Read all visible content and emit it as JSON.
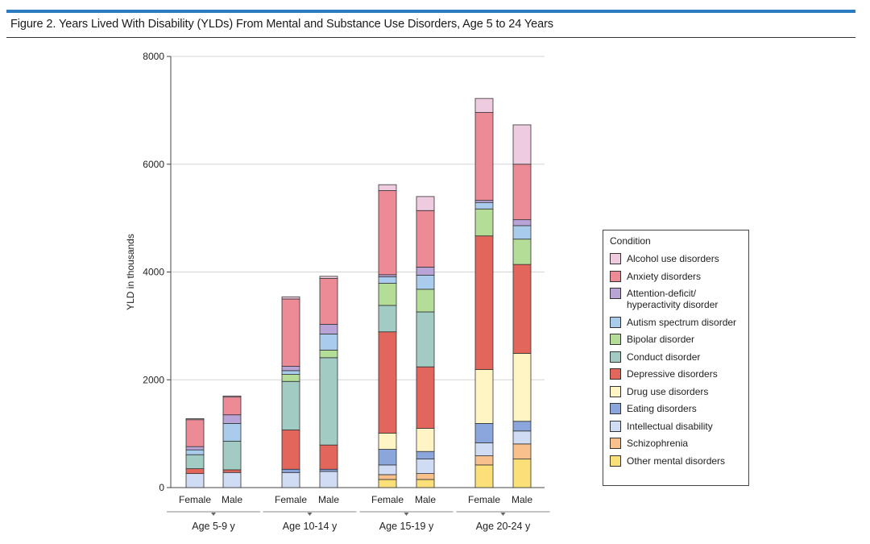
{
  "figure": {
    "title": "Figure 2. Years Lived With Disability (YLDs) From Mental and Substance Use Disorders, Age 5 to 24 Years"
  },
  "chart_data": {
    "type": "bar",
    "stacked": true,
    "ylabel": "YLD in thousands",
    "ylim": [
      0,
      8000
    ],
    "yticks": [
      0,
      2000,
      4000,
      6000,
      8000
    ],
    "groups": [
      {
        "label": "Age 5-9 y",
        "categories": [
          "Female",
          "Male"
        ]
      },
      {
        "label": "Age 10-14 y",
        "categories": [
          "Female",
          "Male"
        ]
      },
      {
        "label": "Age 15-19 y",
        "categories": [
          "Female",
          "Male"
        ]
      },
      {
        "label": "Age 20-24 y",
        "categories": [
          "Female",
          "Male"
        ]
      }
    ],
    "bars": [
      "5-9 Female",
      "5-9 Male",
      "10-14 Female",
      "10-14 Male",
      "15-19 Female",
      "15-19 Male",
      "20-24 Female",
      "20-24 Male"
    ],
    "series": [
      {
        "name": "Other mental disorders",
        "color": "#fbe07a",
        "values": [
          0,
          0,
          0,
          0,
          150,
          150,
          420,
          530
        ]
      },
      {
        "name": "Schizophrenia",
        "color": "#f8c08c",
        "values": [
          0,
          0,
          0,
          0,
          90,
          110,
          170,
          280
        ]
      },
      {
        "name": "Intellectual disability",
        "color": "#cfdcf3",
        "values": [
          260,
          280,
          280,
          300,
          180,
          270,
          240,
          240
        ]
      },
      {
        "name": "Eating disorders",
        "color": "#8aa6dd",
        "values": [
          0,
          0,
          60,
          40,
          290,
          140,
          360,
          180
        ]
      },
      {
        "name": "Drug use disorders",
        "color": "#fff4c4",
        "values": [
          0,
          0,
          0,
          0,
          300,
          430,
          1000,
          1260
        ]
      },
      {
        "name": "Depressive disorders",
        "color": "#e2665c",
        "values": [
          90,
          50,
          730,
          450,
          1880,
          1140,
          2480,
          1650
        ]
      },
      {
        "name": "Conduct disorder",
        "color": "#a2cbc4",
        "values": [
          260,
          530,
          900,
          1620,
          490,
          1020,
          0,
          0
        ]
      },
      {
        "name": "Bipolar disorder",
        "color": "#b4dd98",
        "values": [
          0,
          0,
          130,
          140,
          410,
          420,
          500,
          470
        ]
      },
      {
        "name": "Autism spectrum disorder",
        "color": "#a9cbec",
        "values": [
          90,
          330,
          70,
          300,
          120,
          260,
          120,
          250
        ]
      },
      {
        "name": "Attention-deficit/ hyperactivity disorder",
        "color": "#b8a4d6",
        "values": [
          60,
          160,
          80,
          180,
          40,
          150,
          40,
          110
        ]
      },
      {
        "name": "Anxiety disorders",
        "color": "#ec8a96",
        "values": [
          500,
          330,
          1250,
          850,
          1560,
          1050,
          1630,
          1030
        ]
      },
      {
        "name": "Alcohol use disorders",
        "color": "#efcbe0",
        "values": [
          20,
          20,
          40,
          40,
          110,
          260,
          260,
          730
        ]
      }
    ]
  },
  "legend": {
    "title": "Condition",
    "items": [
      {
        "label": "Alcohol use disorders",
        "color": "#efcbe0"
      },
      {
        "label": "Anxiety disorders",
        "color": "#ec8a96"
      },
      {
        "label": "Attention-deficit/\nhyperactivity disorder",
        "color": "#b8a4d6"
      },
      {
        "label": "Autism spectrum disorder",
        "color": "#a9cbec"
      },
      {
        "label": "Bipolar disorder",
        "color": "#b4dd98"
      },
      {
        "label": "Conduct disorder",
        "color": "#a2cbc4"
      },
      {
        "label": "Depressive disorders",
        "color": "#e2665c"
      },
      {
        "label": "Drug use disorders",
        "color": "#fff4c4"
      },
      {
        "label": "Eating disorders",
        "color": "#8aa6dd"
      },
      {
        "label": "Intellectual disability",
        "color": "#cfdcf3"
      },
      {
        "label": "Schizophrenia",
        "color": "#f8c08c"
      },
      {
        "label": "Other mental disorders",
        "color": "#fbe07a"
      }
    ]
  }
}
